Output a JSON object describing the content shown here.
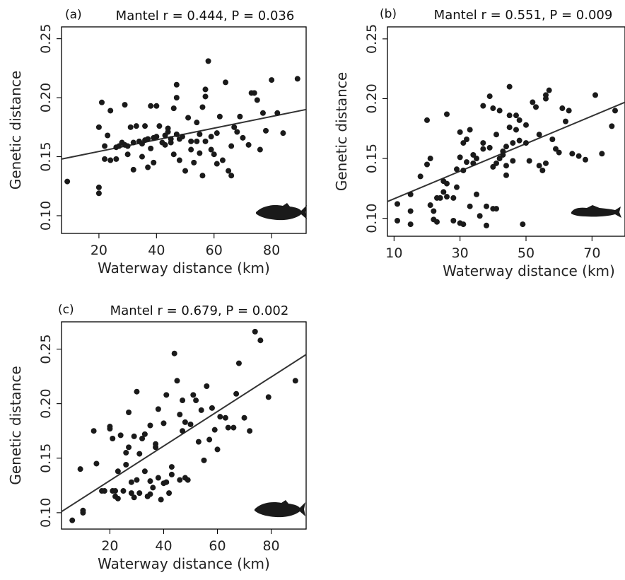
{
  "chart_data": [
    {
      "type": "scatter",
      "panel_label": "(a)",
      "title": "Mantel r = 0.444, P = 0.036",
      "xlabel": "Waterway distance (km)",
      "ylabel": "Genetic distance",
      "xlim": [
        7,
        92
      ],
      "ylim": [
        0.085,
        0.26
      ],
      "xticks": [
        "20",
        "40",
        "60",
        "80"
      ],
      "yticks": [
        "0.10",
        "0.15",
        "0.20",
        "0.25"
      ],
      "regression": {
        "x": [
          7,
          92
        ],
        "y": [
          0.148,
          0.19
        ]
      },
      "icon": "fish-icon",
      "points": [
        [
          9,
          0.129
        ],
        [
          20,
          0.124
        ],
        [
          20,
          0.119
        ],
        [
          20,
          0.175
        ],
        [
          21,
          0.196
        ],
        [
          22,
          0.148
        ],
        [
          22,
          0.159
        ],
        [
          23,
          0.168
        ],
        [
          24,
          0.147
        ],
        [
          24,
          0.189
        ],
        [
          26,
          0.158
        ],
        [
          26,
          0.148
        ],
        [
          27,
          0.159
        ],
        [
          28,
          0.162
        ],
        [
          29,
          0.194
        ],
        [
          29,
          0.16
        ],
        [
          30,
          0.152
        ],
        [
          30,
          0.159
        ],
        [
          31,
          0.175
        ],
        [
          32,
          0.139
        ],
        [
          32,
          0.162
        ],
        [
          33,
          0.176
        ],
        [
          34,
          0.163
        ],
        [
          35,
          0.161
        ],
        [
          35,
          0.15
        ],
        [
          36,
          0.176
        ],
        [
          36,
          0.164
        ],
        [
          37,
          0.141
        ],
        [
          37,
          0.165
        ],
        [
          38,
          0.157
        ],
        [
          38,
          0.193
        ],
        [
          39,
          0.166
        ],
        [
          39,
          0.145
        ],
        [
          40,
          0.193
        ],
        [
          40,
          0.167
        ],
        [
          41,
          0.176
        ],
        [
          42,
          0.162
        ],
        [
          43,
          0.168
        ],
        [
          43,
          0.16
        ],
        [
          44,
          0.174
        ],
        [
          44,
          0.171
        ],
        [
          45,
          0.165
        ],
        [
          45,
          0.162
        ],
        [
          46,
          0.191
        ],
        [
          46,
          0.152
        ],
        [
          47,
          0.169
        ],
        [
          47,
          0.211
        ],
        [
          47,
          0.2
        ],
        [
          48,
          0.147
        ],
        [
          48,
          0.165
        ],
        [
          49,
          0.167
        ],
        [
          50,
          0.138
        ],
        [
          51,
          0.183
        ],
        [
          52,
          0.156
        ],
        [
          52,
          0.163
        ],
        [
          53,
          0.145
        ],
        [
          54,
          0.179
        ],
        [
          54,
          0.163
        ],
        [
          55,
          0.153
        ],
        [
          55,
          0.169
        ],
        [
          56,
          0.134
        ],
        [
          56,
          0.192
        ],
        [
          57,
          0.207
        ],
        [
          57,
          0.201
        ],
        [
          57,
          0.163
        ],
        [
          58,
          0.231
        ],
        [
          59,
          0.167
        ],
        [
          59,
          0.156
        ],
        [
          60,
          0.152
        ],
        [
          61,
          0.144
        ],
        [
          61,
          0.17
        ],
        [
          62,
          0.184
        ],
        [
          63,
          0.147
        ],
        [
          64,
          0.213
        ],
        [
          65,
          0.138
        ],
        [
          66,
          0.134
        ],
        [
          66,
          0.159
        ],
        [
          67,
          0.175
        ],
        [
          68,
          0.171
        ],
        [
          69,
          0.184
        ],
        [
          70,
          0.166
        ],
        [
          72,
          0.16
        ],
        [
          73,
          0.204
        ],
        [
          74,
          0.204
        ],
        [
          75,
          0.198
        ],
        [
          76,
          0.156
        ],
        [
          77,
          0.187
        ],
        [
          78,
          0.172
        ],
        [
          80,
          0.215
        ],
        [
          82,
          0.187
        ],
        [
          84,
          0.17
        ],
        [
          89,
          0.216
        ]
      ]
    },
    {
      "type": "scatter",
      "panel_label": "(b)",
      "title": "Mantel r = 0.551, P = 0.009",
      "xlabel": "Waterway distance (km)",
      "ylabel": "Genetic distance",
      "xlim": [
        8,
        80
      ],
      "ylim": [
        0.085,
        0.26
      ],
      "xticks": [
        "10",
        "30",
        "50",
        "70"
      ],
      "yticks": [
        "0.10",
        "0.15",
        "0.20",
        "0.25"
      ],
      "regression": {
        "x": [
          8,
          80
        ],
        "y": [
          0.114,
          0.197
        ]
      },
      "icon": "catfish-icon",
      "points": [
        [
          11,
          0.112
        ],
        [
          11,
          0.098
        ],
        [
          15,
          0.12
        ],
        [
          15,
          0.106
        ],
        [
          15,
          0.095
        ],
        [
          18,
          0.135
        ],
        [
          20,
          0.182
        ],
        [
          20,
          0.145
        ],
        [
          21,
          0.15
        ],
        [
          21,
          0.111
        ],
        [
          22,
          0.106
        ],
        [
          22,
          0.099
        ],
        [
          23,
          0.117
        ],
        [
          23,
          0.097
        ],
        [
          24,
          0.117
        ],
        [
          25,
          0.131
        ],
        [
          25,
          0.122
        ],
        [
          26,
          0.187
        ],
        [
          26,
          0.129
        ],
        [
          26,
          0.118
        ],
        [
          28,
          0.117
        ],
        [
          28,
          0.098
        ],
        [
          29,
          0.141
        ],
        [
          29,
          0.126
        ],
        [
          30,
          0.172
        ],
        [
          30,
          0.151
        ],
        [
          30,
          0.096
        ],
        [
          31,
          0.163
        ],
        [
          31,
          0.14
        ],
        [
          31,
          0.095
        ],
        [
          32,
          0.166
        ],
        [
          32,
          0.147
        ],
        [
          33,
          0.174
        ],
        [
          33,
          0.11
        ],
        [
          34,
          0.153
        ],
        [
          34,
          0.146
        ],
        [
          35,
          0.15
        ],
        [
          35,
          0.12
        ],
        [
          36,
          0.102
        ],
        [
          37,
          0.163
        ],
        [
          37,
          0.158
        ],
        [
          37,
          0.194
        ],
        [
          38,
          0.094
        ],
        [
          38,
          0.11
        ],
        [
          39,
          0.202
        ],
        [
          39,
          0.159
        ],
        [
          40,
          0.192
        ],
        [
          40,
          0.143
        ],
        [
          40,
          0.108
        ],
        [
          41,
          0.17
        ],
        [
          41,
          0.146
        ],
        [
          41,
          0.108
        ],
        [
          42,
          0.15
        ],
        [
          42,
          0.19
        ],
        [
          43,
          0.156
        ],
        [
          43,
          0.153
        ],
        [
          44,
          0.16
        ],
        [
          44,
          0.144
        ],
        [
          44,
          0.136
        ],
        [
          45,
          0.186
        ],
        [
          45,
          0.176
        ],
        [
          45,
          0.21
        ],
        [
          46,
          0.163
        ],
        [
          46,
          0.148
        ],
        [
          47,
          0.186
        ],
        [
          47,
          0.174
        ],
        [
          48,
          0.182
        ],
        [
          48,
          0.165
        ],
        [
          49,
          0.095
        ],
        [
          50,
          0.163
        ],
        [
          50,
          0.178
        ],
        [
          51,
          0.148
        ],
        [
          52,
          0.197
        ],
        [
          53,
          0.193
        ],
        [
          54,
          0.17
        ],
        [
          54,
          0.144
        ],
        [
          55,
          0.14
        ],
        [
          56,
          0.203
        ],
        [
          56,
          0.2
        ],
        [
          56,
          0.146
        ],
        [
          57,
          0.207
        ],
        [
          58,
          0.166
        ],
        [
          59,
          0.158
        ],
        [
          60,
          0.155
        ],
        [
          61,
          0.192
        ],
        [
          62,
          0.181
        ],
        [
          63,
          0.19
        ],
        [
          64,
          0.154
        ],
        [
          66,
          0.152
        ],
        [
          68,
          0.149
        ],
        [
          71,
          0.203
        ],
        [
          73,
          0.154
        ],
        [
          76,
          0.177
        ],
        [
          77,
          0.19
        ]
      ]
    },
    {
      "type": "scatter",
      "panel_label": "(c)",
      "title": "Mantel r = 0.679, P = 0.002",
      "xlabel": "Waterway distance (km)",
      "ylabel": "Genetic distance",
      "xlim": [
        2,
        93
      ],
      "ylim": [
        0.085,
        0.275
      ],
      "xticks": [
        "20",
        "40",
        "60",
        "80"
      ],
      "yticks": [
        "0.10",
        "0.15",
        "0.20",
        "0.25"
      ],
      "regression": {
        "x": [
          2,
          93
        ],
        "y": [
          0.101,
          0.245
        ]
      },
      "icon": "fish-icon",
      "points": [
        [
          6,
          0.093
        ],
        [
          9,
          0.14
        ],
        [
          10,
          0.102
        ],
        [
          10,
          0.1
        ],
        [
          14,
          0.175
        ],
        [
          15,
          0.145
        ],
        [
          17,
          0.12
        ],
        [
          18,
          0.12
        ],
        [
          20,
          0.179
        ],
        [
          20,
          0.177
        ],
        [
          21,
          0.12
        ],
        [
          21,
          0.168
        ],
        [
          22,
          0.12
        ],
        [
          22,
          0.115
        ],
        [
          23,
          0.113
        ],
        [
          23,
          0.138
        ],
        [
          24,
          0.171
        ],
        [
          25,
          0.12
        ],
        [
          26,
          0.155
        ],
        [
          26,
          0.144
        ],
        [
          27,
          0.16
        ],
        [
          27,
          0.192
        ],
        [
          28,
          0.128
        ],
        [
          28,
          0.118
        ],
        [
          29,
          0.114
        ],
        [
          29,
          0.17
        ],
        [
          30,
          0.211
        ],
        [
          30,
          0.13
        ],
        [
          31,
          0.154
        ],
        [
          31,
          0.118
        ],
        [
          32,
          0.168
        ],
        [
          33,
          0.172
        ],
        [
          33,
          0.138
        ],
        [
          34,
          0.115
        ],
        [
          35,
          0.117
        ],
        [
          35,
          0.18
        ],
        [
          35,
          0.129
        ],
        [
          36,
          0.123
        ],
        [
          37,
          0.16
        ],
        [
          37,
          0.163
        ],
        [
          38,
          0.195
        ],
        [
          38,
          0.132
        ],
        [
          39,
          0.112
        ],
        [
          40,
          0.127
        ],
        [
          40,
          0.182
        ],
        [
          41,
          0.208
        ],
        [
          41,
          0.128
        ],
        [
          42,
          0.118
        ],
        [
          43,
          0.142
        ],
        [
          43,
          0.135
        ],
        [
          44,
          0.246
        ],
        [
          45,
          0.221
        ],
        [
          46,
          0.19
        ],
        [
          46,
          0.13
        ],
        [
          47,
          0.203
        ],
        [
          47,
          0.175
        ],
        [
          48,
          0.183
        ],
        [
          48,
          0.132
        ],
        [
          49,
          0.13
        ],
        [
          50,
          0.181
        ],
        [
          51,
          0.208
        ],
        [
          52,
          0.203
        ],
        [
          53,
          0.165
        ],
        [
          54,
          0.194
        ],
        [
          55,
          0.148
        ],
        [
          56,
          0.216
        ],
        [
          57,
          0.167
        ],
        [
          58,
          0.196
        ],
        [
          59,
          0.176
        ],
        [
          60,
          0.158
        ],
        [
          61,
          0.188
        ],
        [
          63,
          0.187
        ],
        [
          64,
          0.178
        ],
        [
          66,
          0.178
        ],
        [
          67,
          0.209
        ],
        [
          68,
          0.237
        ],
        [
          70,
          0.187
        ],
        [
          72,
          0.175
        ],
        [
          74,
          0.266
        ],
        [
          76,
          0.258
        ],
        [
          79,
          0.206
        ],
        [
          89,
          0.221
        ]
      ]
    }
  ]
}
